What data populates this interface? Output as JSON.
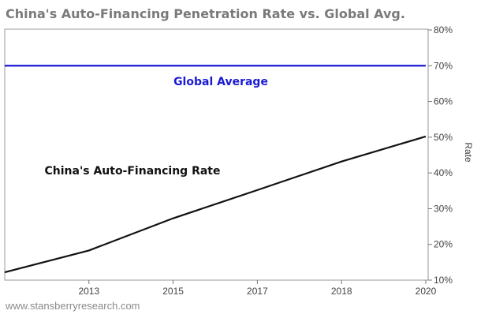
{
  "chart_data": {
    "type": "line",
    "title": "China's Auto-Financing Penetration Rate vs. Global Avg.",
    "xlabel": "",
    "ylabel": "Rate",
    "categories": [
      "",
      "2013",
      "2015",
      "2017",
      "2018",
      "2020"
    ],
    "ylim": [
      10,
      80
    ],
    "yticks": [
      10,
      20,
      30,
      40,
      50,
      60,
      70,
      80
    ],
    "ytick_suffix": "%",
    "y_axis_side": "right",
    "grid": false,
    "series": [
      {
        "name": "China's Auto-Financing Rate",
        "color": "#111111",
        "values": [
          12.2,
          18.3,
          27.3,
          35.2,
          43.2,
          50.2
        ]
      },
      {
        "name": "Global Average",
        "color": "#1a1ad6",
        "values": [
          70,
          70,
          70,
          70,
          70,
          70
        ]
      }
    ],
    "annotations": {
      "global": "Global Average",
      "china": "China's Auto-Financing Rate"
    },
    "watermark": "www.stansberryresearch.com"
  }
}
